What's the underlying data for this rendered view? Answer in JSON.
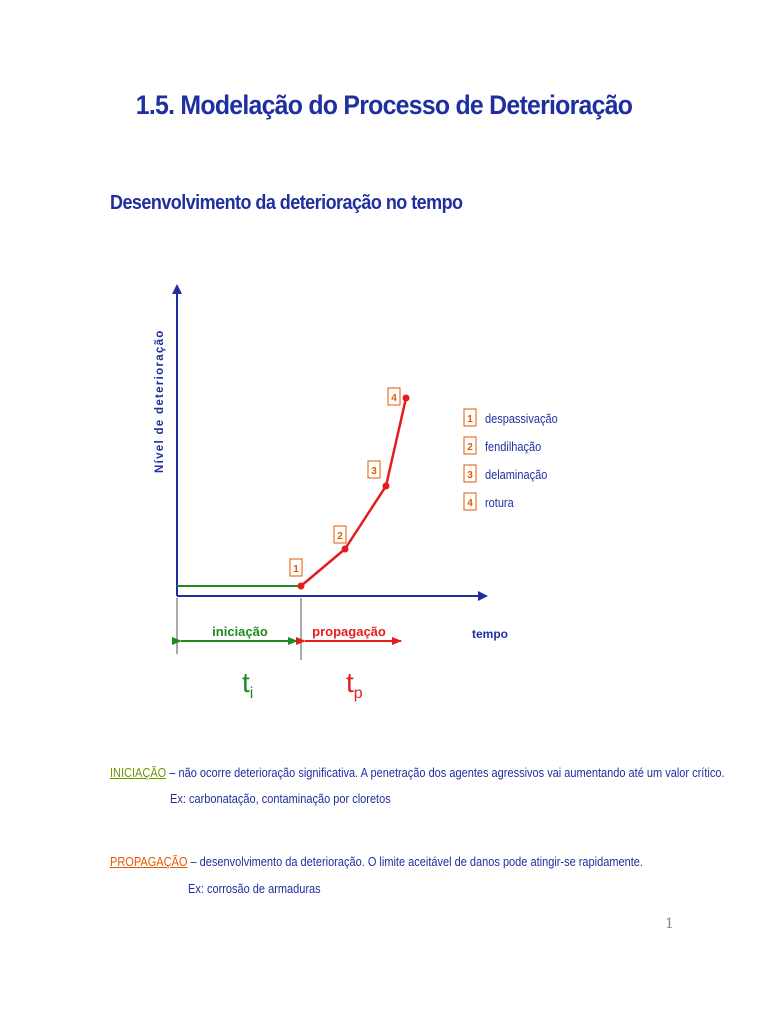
{
  "page": {
    "title": "1.5. Modelação do Processo de Deterioração",
    "subtitle": "Desenvolvimento da deterioração no tempo",
    "page_number": "1"
  },
  "diagram": {
    "y_axis_label": "Nível de deterioração",
    "x_axis_label": "tempo",
    "phases": [
      {
        "label": "iniciação",
        "symbol": "t",
        "subscript": "i",
        "color": "#1f8a1f"
      },
      {
        "label": "propagação",
        "symbol": "t",
        "subscript": "p",
        "color": "#e51c1c"
      }
    ],
    "points": [
      {
        "marker": "1",
        "name": "despassivação"
      },
      {
        "marker": "2",
        "name": "fendilhação"
      },
      {
        "marker": "3",
        "name": "delaminação"
      },
      {
        "marker": "4",
        "name": "rotura"
      }
    ],
    "colors": {
      "axis": "#1f2f9f",
      "initiation": "#1f8a1f",
      "propagation": "#e51c1c",
      "marker_border": "#e05a00"
    }
  },
  "notes": {
    "initiation": {
      "keyword": "INICIAÇÃO",
      "text": " – não ocorre deterioração significativa. A penetração dos agentes agressivos vai  aumentando até um valor crítico.",
      "example": "Ex: carbonatação, contaminação por cloretos"
    },
    "propagation": {
      "keyword": "PROPAGAÇÃO",
      "text": " – desenvolvimento da deterioração. O limite aceitável de danos pode atingir-se rapidamente.",
      "example": "Ex: corrosão de armaduras"
    }
  }
}
